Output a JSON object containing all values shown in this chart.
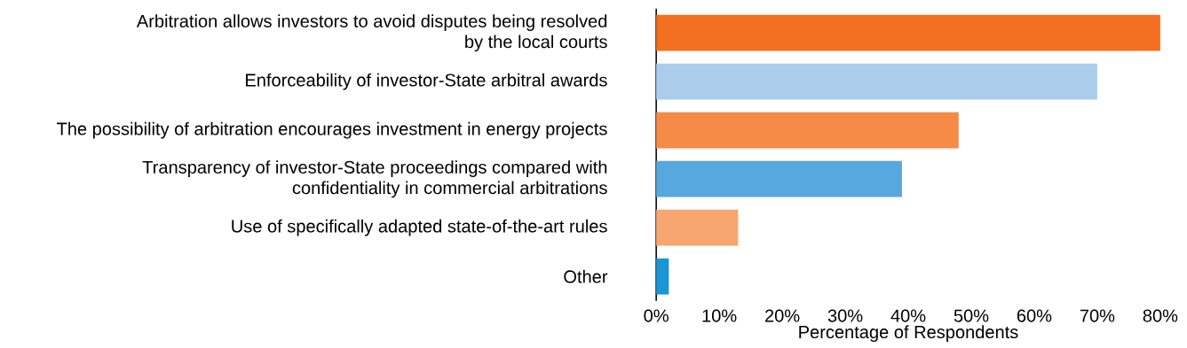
{
  "chart_data": {
    "type": "bar",
    "orientation": "horizontal",
    "xlabel": "Percentage of Respondents",
    "categories": [
      "Arbitration allows investors to avoid disputes being resolved by the local courts",
      "Enforceability of investor-State arbitral awards",
      "The possibility of arbitration encourages investment in energy projects",
      "Transparency of investor-State proceedings compared with confidentiality in commercial arbitrations",
      "Use of specifically adapted state-of-the-art rules",
      "Other"
    ],
    "values": [
      80,
      70,
      48,
      39,
      13,
      2
    ],
    "colors": [
      "#f37021",
      "#aacdeb",
      "#f68b47",
      "#56a8de",
      "#f8a66f",
      "#1a95d5"
    ],
    "xlim": [
      0,
      80
    ],
    "xticks": [
      {
        "value": 0,
        "label": "0%"
      },
      {
        "value": 10,
        "label": "10%"
      },
      {
        "value": 20,
        "label": "20%"
      },
      {
        "value": 30,
        "label": "30%"
      },
      {
        "value": 40,
        "label": "40%"
      },
      {
        "value": 50,
        "label": "50%"
      },
      {
        "value": 60,
        "label": "60%"
      },
      {
        "value": 70,
        "label": "70%"
      },
      {
        "value": 80,
        "label": "80%"
      }
    ],
    "grid": false
  }
}
